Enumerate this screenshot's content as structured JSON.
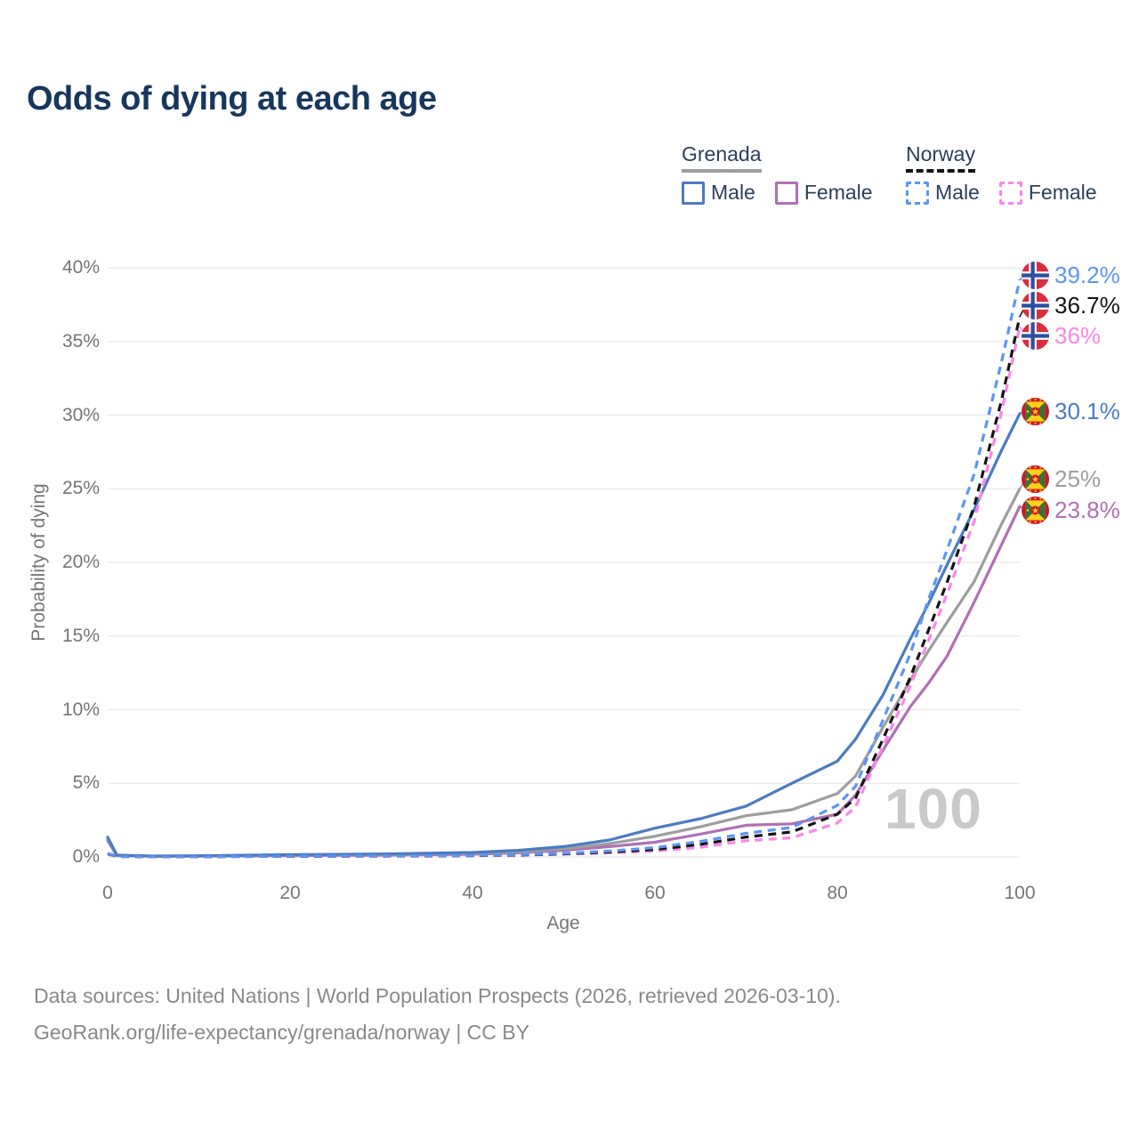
{
  "title": "Odds of dying at each age",
  "legend": {
    "groups": [
      {
        "country": "Grenada",
        "underline": {
          "color": "#9d9d9d",
          "style": "solid"
        },
        "items": [
          {
            "label": "Male",
            "color": "#4a7bc4",
            "style": "solid"
          },
          {
            "label": "Female",
            "color": "#b06fb4",
            "style": "solid"
          }
        ]
      },
      {
        "country": "Norway",
        "underline": {
          "color": "#141414",
          "style": "dashed"
        },
        "items": [
          {
            "label": "Male",
            "color": "#5b95f5",
            "style": "dashed"
          },
          {
            "label": "Female",
            "color": "#fb85e9",
            "style": "dashed"
          }
        ]
      }
    ]
  },
  "chart_data": {
    "type": "line",
    "title": "Odds of dying at each age",
    "xlabel": "Age",
    "ylabel": "Probability of dying",
    "xlim": [
      0,
      100
    ],
    "ylim": [
      0,
      40
    ],
    "xtick_values": [
      0,
      20,
      40,
      60,
      80,
      100
    ],
    "ytick_values": [
      0,
      5,
      10,
      15,
      20,
      25,
      30,
      35,
      40
    ],
    "ytick_suffix": "%",
    "grid": "horizontal",
    "legend_position": "top-right",
    "watermark": "100",
    "x": [
      0,
      1,
      5,
      10,
      20,
      30,
      40,
      45,
      50,
      55,
      60,
      65,
      70,
      75,
      80,
      82,
      85,
      88,
      90,
      92,
      95,
      98,
      100
    ],
    "series": [
      {
        "name": "Norway Male",
        "country": "Norway",
        "sex": "male",
        "style": "dashed",
        "color": "#5b95f5",
        "end_label": "39.2%",
        "end_value": 39.2,
        "values": [
          0.25,
          0.03,
          0.02,
          0.02,
          0.05,
          0.07,
          0.1,
          0.15,
          0.25,
          0.4,
          0.63,
          1.05,
          1.6,
          2.0,
          3.5,
          4.8,
          9.3,
          13.8,
          17.5,
          20.8,
          26.0,
          33.6,
          39.2
        ]
      },
      {
        "name": "Norway Total",
        "country": "Norway",
        "sex": "total",
        "style": "dashed",
        "color": "#141414",
        "end_label": "36.7%",
        "end_value": 36.7,
        "values": [
          0.22,
          0.03,
          0.02,
          0.02,
          0.04,
          0.06,
          0.09,
          0.13,
          0.21,
          0.33,
          0.5,
          0.85,
          1.35,
          1.7,
          2.9,
          4.0,
          8.0,
          12.2,
          15.4,
          18.6,
          23.8,
          31.0,
          36.7
        ]
      },
      {
        "name": "Norway Female",
        "country": "Norway",
        "sex": "female",
        "style": "dashed",
        "color": "#fb85e9",
        "end_label": "36%",
        "end_value": 36.0,
        "values": [
          0.2,
          0.02,
          0.02,
          0.02,
          0.04,
          0.05,
          0.08,
          0.11,
          0.18,
          0.28,
          0.4,
          0.65,
          1.1,
          1.3,
          2.3,
          3.4,
          7.5,
          11.6,
          14.7,
          17.8,
          22.8,
          30.2,
          36.0
        ]
      },
      {
        "name": "Grenada Male",
        "country": "Grenada",
        "sex": "male",
        "style": "solid",
        "color": "#4a7bc4",
        "end_label": "30.1%",
        "end_value": 30.1,
        "values": [
          1.35,
          0.12,
          0.06,
          0.08,
          0.15,
          0.2,
          0.3,
          0.45,
          0.7,
          1.15,
          1.95,
          2.6,
          3.45,
          5.0,
          6.5,
          8.0,
          11.0,
          14.8,
          17.2,
          19.8,
          23.6,
          27.6,
          30.1
        ]
      },
      {
        "name": "Grenada Total",
        "country": "Grenada",
        "sex": "total",
        "style": "solid",
        "color": "#9d9d9d",
        "end_label": "25%",
        "end_value": 25.0,
        "values": [
          1.2,
          0.1,
          0.05,
          0.06,
          0.12,
          0.16,
          0.24,
          0.35,
          0.55,
          0.9,
          1.4,
          2.05,
          2.8,
          3.2,
          4.3,
          5.5,
          8.8,
          12.0,
          14.0,
          15.9,
          18.7,
          22.6,
          25.0
        ]
      },
      {
        "name": "Grenada Female",
        "country": "Grenada",
        "sex": "female",
        "style": "solid",
        "color": "#b06fb4",
        "end_label": "23.8%",
        "end_value": 23.8,
        "values": [
          1.1,
          0.09,
          0.05,
          0.05,
          0.08,
          0.12,
          0.18,
          0.28,
          0.45,
          0.7,
          1.0,
          1.55,
          2.15,
          2.25,
          2.9,
          4.2,
          7.25,
          10.2,
          11.8,
          13.6,
          17.3,
          21.2,
          23.8
        ]
      }
    ]
  },
  "source": {
    "line1": "Data sources: United Nations | World Population Prospects (2026, retrieved 2026-03-10).",
    "line2": "GeoRank.org/life-expectancy/grenada/norway | CC BY"
  },
  "colors": {
    "title_text": "#17365d",
    "legend_text": "#2b3f5c",
    "axis_text": "#757575",
    "gridline": "#e7e7e7",
    "watermark": "#c9c9c9",
    "source_text": "#898989"
  }
}
